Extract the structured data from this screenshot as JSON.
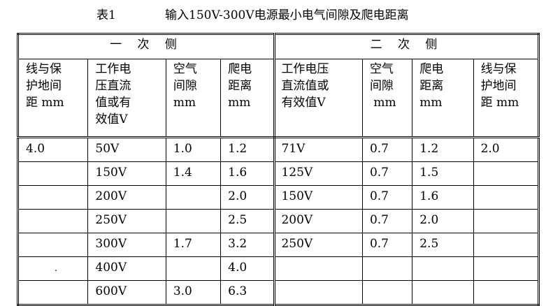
{
  "caption": {
    "label": "表1",
    "title": "输入150V-300V电源最小电气间隙及爬电距离"
  },
  "groups": {
    "primary": "一 次 侧",
    "secondary": "二 次 侧"
  },
  "headers": {
    "p_line_to_pe": [
      "线与保",
      "护地间",
      "距 mm"
    ],
    "p_working_voltage": [
      "工作电",
      "压直流",
      "值或有",
      "效值V"
    ],
    "p_clearance": [
      "空气",
      "间隙",
      "mm"
    ],
    "p_creepage": [
      "爬电",
      "距离",
      "mm"
    ],
    "s_working_voltage": [
      "工作电压",
      "直流值或",
      "有效值V"
    ],
    "s_clearance": [
      "空气",
      "间隙",
      " mm"
    ],
    "s_creepage": [
      "爬电",
      "距离",
      "mm"
    ],
    "s_line_to_pe": [
      "线与保",
      "护地间",
      "距 mm"
    ]
  },
  "rows": [
    [
      "4.0",
      "50V",
      "1.0",
      "1.2",
      "71V",
      "0.7",
      "1.2",
      "2.0"
    ],
    [
      "",
      "150V",
      "1.4",
      "1.6",
      "125V",
      "0.7",
      "1.5",
      ""
    ],
    [
      "",
      "200V",
      "",
      "2.0",
      "150V",
      "0.7",
      "1.6",
      ""
    ],
    [
      "",
      "250V",
      "",
      "2.5",
      "200V",
      "0.7",
      "2.0",
      ""
    ],
    [
      "",
      "300V",
      "1.7",
      "3.2",
      "250V",
      "0.7",
      "2.5",
      ""
    ],
    [
      "",
      "400V",
      "",
      "4.0",
      "",
      "",
      "",
      ""
    ],
    [
      "",
      "600V",
      "3.0",
      "6.3",
      "",
      "",
      "",
      ""
    ]
  ]
}
